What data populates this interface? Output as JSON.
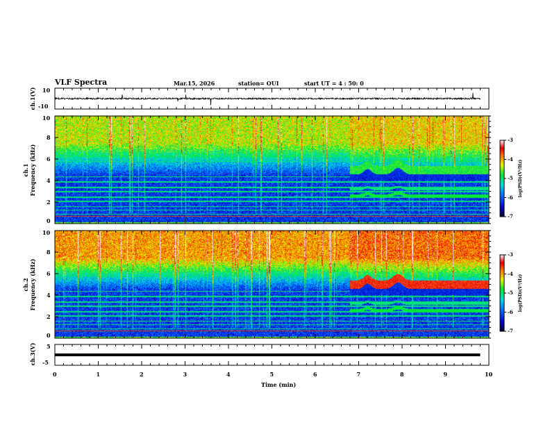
{
  "header": {
    "title": "VLF Spectra",
    "date": "Mar.15, 2026",
    "station": "station= OUI",
    "start": "start  UT =   4 : 50: 0"
  },
  "chart_data": [
    {
      "type": "line",
      "name": "ch1 waveform",
      "ylabel": "ch.1(V)",
      "ylim": [
        -10,
        10
      ],
      "yticks": [
        "10",
        "-10"
      ],
      "xlim": [
        0,
        10
      ],
      "data_end_min": 9.8,
      "mean_value": 0,
      "noise_amplitude": 1.5
    },
    {
      "type": "heatmap",
      "name": "ch1 spectrogram",
      "label": "ch.1",
      "ylabel": "Frequency (kHz)",
      "ylim": [
        0,
        10
      ],
      "yticks": [
        "0",
        "2",
        "4",
        "6",
        "8",
        "10"
      ],
      "xlim": [
        0,
        10
      ],
      "event_start_min": 6.8,
      "event_band_khz": 5.0,
      "colorbar": {
        "label": "log(PSD)(V²/Hz)",
        "range": [
          -7,
          -3
        ],
        "ticks": [
          "-3",
          "-4",
          "-5",
          "-6",
          "-7"
        ]
      }
    },
    {
      "type": "heatmap",
      "name": "ch2 spectrogram",
      "label": "ch.2",
      "ylabel": "Frequency (kHz)",
      "ylim": [
        0,
        10
      ],
      "yticks": [
        "0",
        "2",
        "4",
        "6",
        "8",
        "10"
      ],
      "xlim": [
        0,
        10
      ],
      "event_start_min": 6.8,
      "event_band_khz": 5.0,
      "colorbar": {
        "label": "log(PSD)(V²/Hz)",
        "range": [
          -7,
          -3
        ],
        "ticks": [
          "-3",
          "-4",
          "-5",
          "-6",
          "-7"
        ]
      }
    },
    {
      "type": "line",
      "name": "ch3 waveform",
      "ylabel": "ch.3(V)",
      "ylim": [
        -5,
        5
      ],
      "yticks": [
        "5",
        "-5"
      ],
      "xlim": [
        0,
        10
      ],
      "data_end_min": 9.8,
      "mean_value": 0,
      "noise_amplitude": 0
    }
  ],
  "xaxis": {
    "label": "Time  (min)",
    "ticks": [
      "0",
      "1",
      "2",
      "3",
      "4",
      "5",
      "6",
      "7",
      "8",
      "9",
      "10"
    ]
  }
}
